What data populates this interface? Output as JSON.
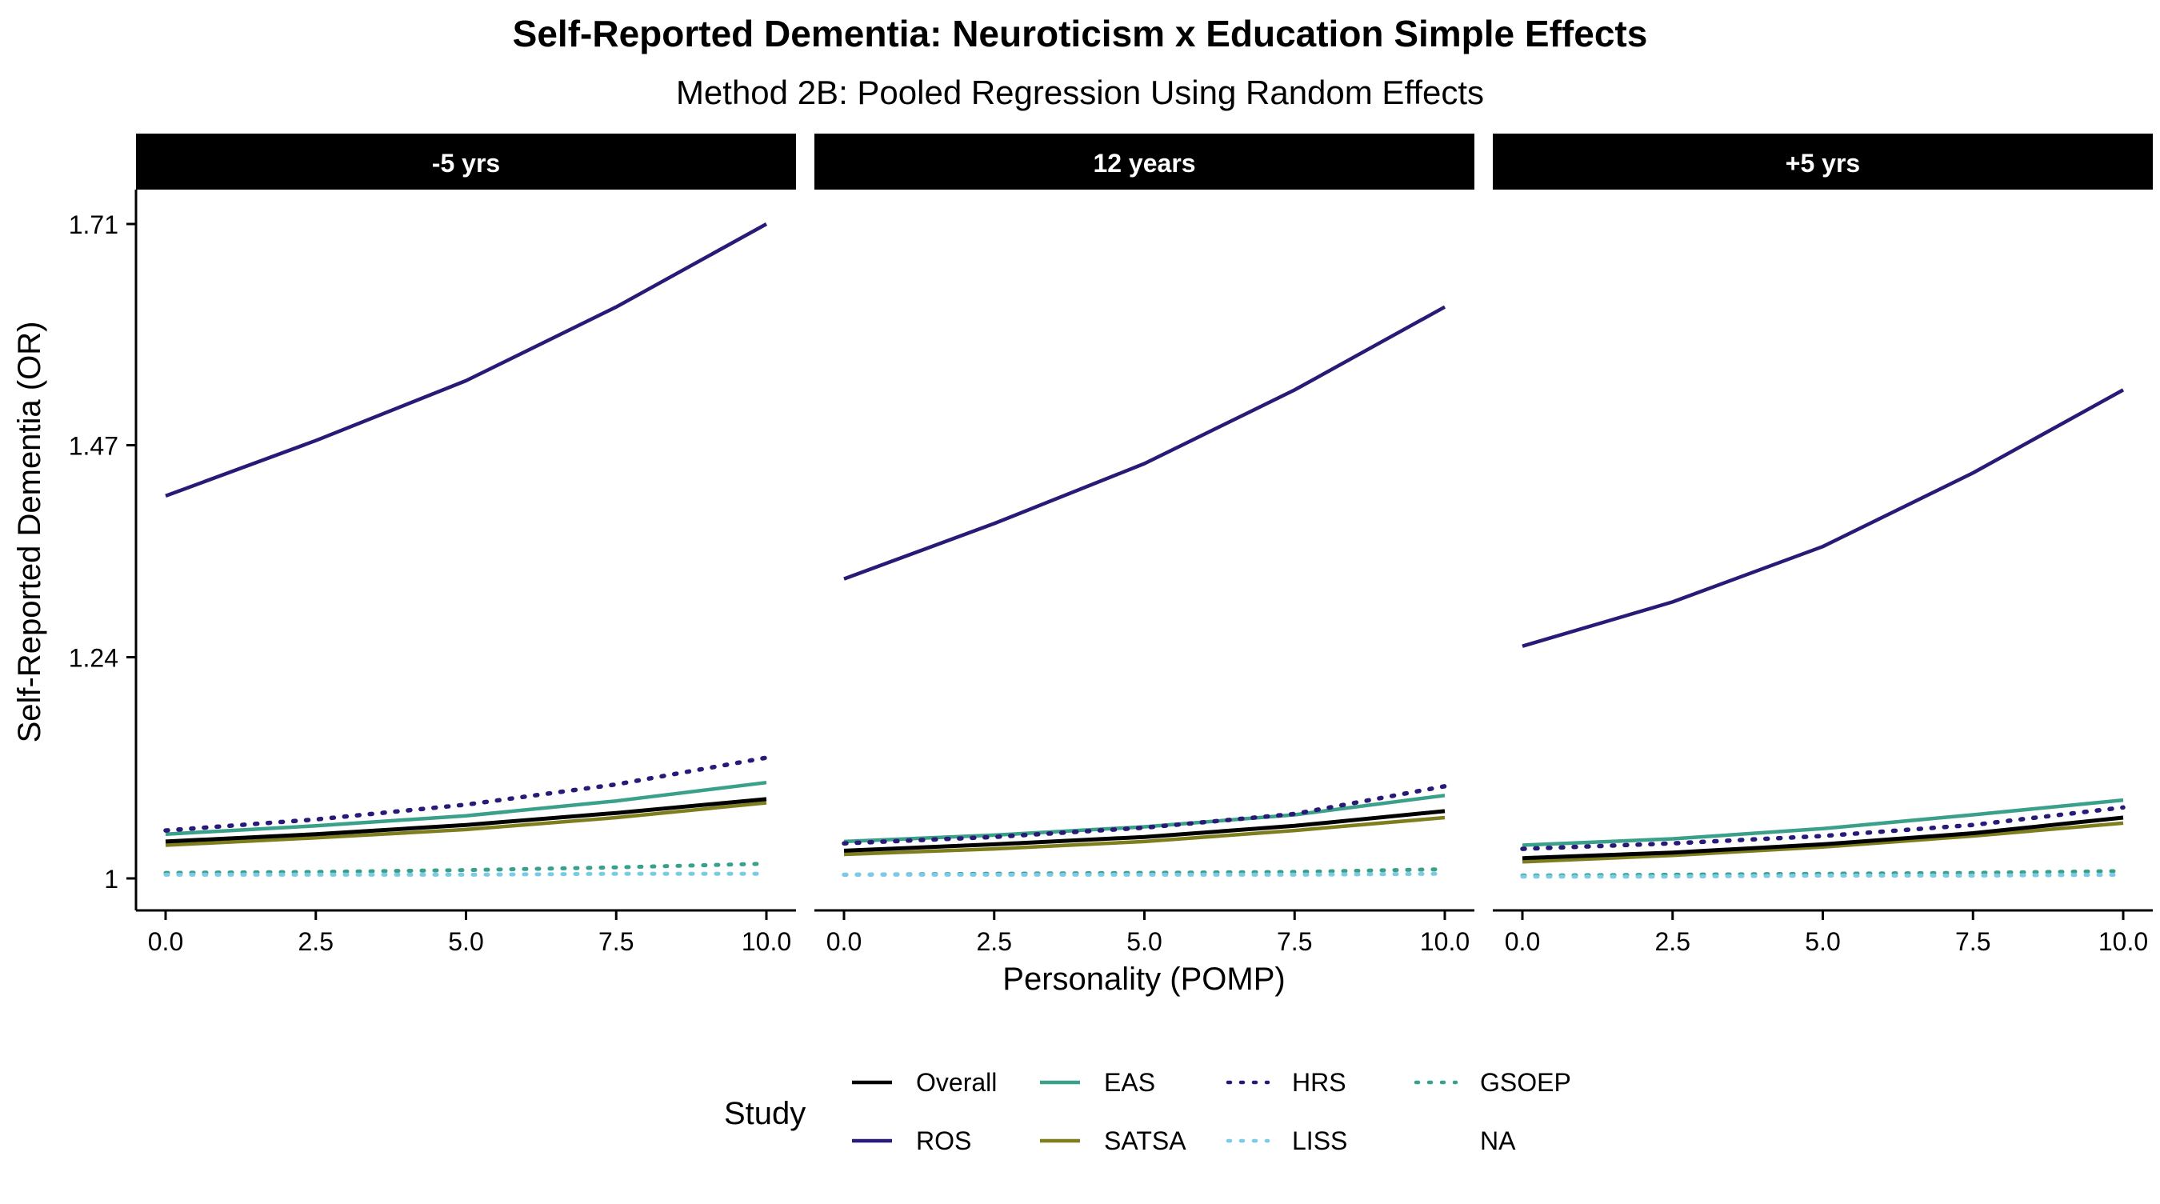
{
  "chart_data": {
    "type": "line",
    "title": "Self-Reported Dementia: Neuroticism x Education Simple Effects",
    "subtitle": "Method 2B: Pooled Regression Using Random Effects",
    "xlabel": "Personality (POMP)",
    "ylabel": "Self-Reported Dementia (OR)",
    "xlim": [
      0,
      10
    ],
    "ylim": [
      1,
      1.71
    ],
    "x_ticks": [
      "0.0",
      "2.5",
      "5.0",
      "7.5",
      "10.0"
    ],
    "y_ticks": [
      "1",
      "1.24",
      "1.47",
      "1.71"
    ],
    "grid": false,
    "legend_position": "bottom",
    "legend": {
      "title": "Study",
      "entries": [
        "Overall",
        "ROS",
        "EAS",
        "SATSA",
        "HRS",
        "LISS",
        "GSOEP",
        "NA"
      ]
    },
    "styles": {
      "Overall": {
        "color": "#000000",
        "dash": "solid",
        "width": 5
      },
      "ROS": {
        "color": "#2a1a77",
        "dash": "solid",
        "width": 4.5
      },
      "EAS": {
        "color": "#3aa08a",
        "dash": "solid",
        "width": 4.5
      },
      "SATSA": {
        "color": "#7e7e1e",
        "dash": "solid",
        "width": 4.5
      },
      "HRS": {
        "color": "#2a1a77",
        "dash": "dotted",
        "width": 5.5
      },
      "LISS": {
        "color": "#7ccbe6",
        "dash": "dotted",
        "width": 5
      },
      "GSOEP": {
        "color": "#3aa08a",
        "dash": "dotted",
        "width": 5
      },
      "NA": {
        "color": "none",
        "dash": "none",
        "width": 0
      }
    },
    "panels": [
      {
        "label": "-5 yrs",
        "x": [
          0,
          2.5,
          5,
          7.5,
          10
        ],
        "series": [
          {
            "name": "Overall",
            "values": [
              1.04,
              1.048,
              1.058,
              1.071,
              1.086
            ]
          },
          {
            "name": "ROS",
            "values": [
              1.415,
              1.475,
              1.54,
              1.62,
              1.71
            ]
          },
          {
            "name": "EAS",
            "values": [
              1.048,
              1.057,
              1.068,
              1.084,
              1.104
            ]
          },
          {
            "name": "SATSA",
            "values": [
              1.036,
              1.044,
              1.053,
              1.066,
              1.082
            ]
          },
          {
            "name": "HRS",
            "values": [
              1.052,
              1.064,
              1.08,
              1.102,
              1.131
            ]
          },
          {
            "name": "LISS",
            "values": [
              1.004,
              1.004,
              1.004,
              1.005,
              1.005
            ]
          },
          {
            "name": "GSOEP",
            "values": [
              1.006,
              1.007,
              1.009,
              1.012,
              1.016
            ]
          }
        ]
      },
      {
        "label": "12 years",
        "x": [
          0,
          2.5,
          5,
          7.5,
          10
        ],
        "series": [
          {
            "name": "Overall",
            "values": [
              1.03,
              1.037,
              1.045,
              1.057,
              1.073
            ]
          },
          {
            "name": "ROS",
            "values": [
              1.325,
              1.385,
              1.45,
              1.53,
              1.62
            ]
          },
          {
            "name": "EAS",
            "values": [
              1.04,
              1.047,
              1.056,
              1.069,
              1.09
            ]
          },
          {
            "name": "SATSA",
            "values": [
              1.026,
              1.032,
              1.04,
              1.052,
              1.066
            ]
          },
          {
            "name": "HRS",
            "values": [
              1.038,
              1.045,
              1.055,
              1.07,
              1.1
            ]
          },
          {
            "name": "LISS",
            "values": [
              1.004,
              1.004,
              1.004,
              1.004,
              1.005
            ]
          },
          {
            "name": "GSOEP",
            "values": [
              1.004,
              1.005,
              1.006,
              1.007,
              1.01
            ]
          }
        ]
      },
      {
        "label": "+5 yrs",
        "x": [
          0,
          2.5,
          5,
          7.5,
          10
        ],
        "series": [
          {
            "name": "Overall",
            "values": [
              1.022,
              1.028,
              1.037,
              1.049,
              1.066
            ]
          },
          {
            "name": "ROS",
            "values": [
              1.252,
              1.3,
              1.36,
              1.44,
              1.53
            ]
          },
          {
            "name": "EAS",
            "values": [
              1.036,
              1.043,
              1.054,
              1.069,
              1.085
            ]
          },
          {
            "name": "SATSA",
            "values": [
              1.018,
              1.025,
              1.034,
              1.046,
              1.06
            ]
          },
          {
            "name": "HRS",
            "values": [
              1.032,
              1.038,
              1.046,
              1.058,
              1.077
            ]
          },
          {
            "name": "LISS",
            "values": [
              1.002,
              1.002,
              1.003,
              1.003,
              1.004
            ]
          },
          {
            "name": "GSOEP",
            "values": [
              1.003,
              1.004,
              1.005,
              1.006,
              1.008
            ]
          }
        ]
      }
    ]
  }
}
